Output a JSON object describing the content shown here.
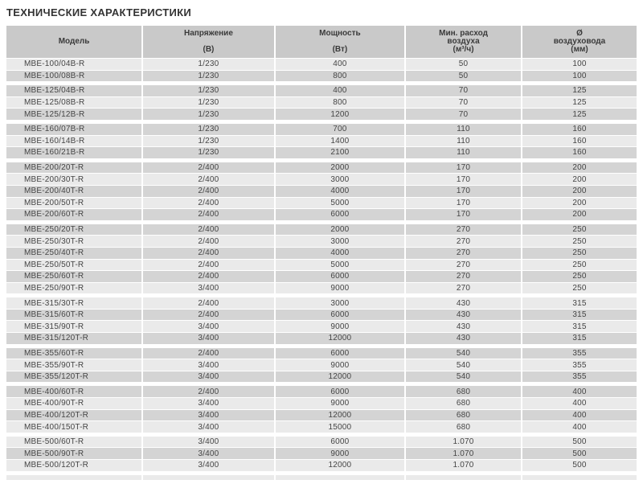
{
  "page_title": "ТЕХНИЧЕСКИЕ ХАРАКТЕРИСТИКИ",
  "colors": {
    "header_bg": "#c9c9c9",
    "row_light": "#eaeaea",
    "row_dark": "#d4d4d4",
    "separator": "#ffffff",
    "title_text": "#333333",
    "cell_text": "#454545"
  },
  "table": {
    "columns": [
      {
        "id": "model",
        "lines": [
          "Модель"
        ]
      },
      {
        "id": "voltage",
        "lines": [
          "Напряжение",
          "(В)"
        ]
      },
      {
        "id": "power",
        "lines": [
          "Мощность",
          "(Вт)"
        ]
      },
      {
        "id": "airflow",
        "lines": [
          "Мин. расход",
          "воздуха",
          "(м³/ч)"
        ]
      },
      {
        "id": "diameter",
        "lines": [
          "Ø",
          "воздуховода",
          "(мм)"
        ]
      }
    ],
    "groups": [
      {
        "rows": [
          [
            "MBE-100/04B-R",
            "1/230",
            "400",
            "50",
            "100"
          ],
          [
            "MBE-100/08B-R",
            "1/230",
            "800",
            "50",
            "100"
          ]
        ]
      },
      {
        "rows": [
          [
            "MBE-125/04B-R",
            "1/230",
            "400",
            "70",
            "125"
          ],
          [
            "MBE-125/08B-R",
            "1/230",
            "800",
            "70",
            "125"
          ],
          [
            "MBE-125/12B-R",
            "1/230",
            "1200",
            "70",
            "125"
          ]
        ]
      },
      {
        "rows": [
          [
            "MBE-160/07B-R",
            "1/230",
            "700",
            "110",
            "160"
          ],
          [
            "MBE-160/14B-R",
            "1/230",
            "1400",
            "110",
            "160"
          ],
          [
            "MBE-160/21B-R",
            "1/230",
            "2100",
            "110",
            "160"
          ]
        ]
      },
      {
        "rows": [
          [
            "MBE-200/20T-R",
            "2/400",
            "2000",
            "170",
            "200"
          ],
          [
            "MBE-200/30T-R",
            "2/400",
            "3000",
            "170",
            "200"
          ],
          [
            "MBE-200/40T-R",
            "2/400",
            "4000",
            "170",
            "200"
          ],
          [
            "MBE-200/50T-R",
            "2/400",
            "5000",
            "170",
            "200"
          ],
          [
            "MBE-200/60T-R",
            "2/400",
            "6000",
            "170",
            "200"
          ]
        ]
      },
      {
        "rows": [
          [
            "MBE-250/20T-R",
            "2/400",
            "2000",
            "270",
            "250"
          ],
          [
            "MBE-250/30T-R",
            "2/400",
            "3000",
            "270",
            "250"
          ],
          [
            "MBE-250/40T-R",
            "2/400",
            "4000",
            "270",
            "250"
          ],
          [
            "MBE-250/50T-R",
            "2/400",
            "5000",
            "270",
            "250"
          ],
          [
            "MBE-250/60T-R",
            "2/400",
            "6000",
            "270",
            "250"
          ],
          [
            "MBE-250/90T-R",
            "3/400",
            "9000",
            "270",
            "250"
          ]
        ]
      },
      {
        "rows": [
          [
            "MBE-315/30T-R",
            "2/400",
            "3000",
            "430",
            "315"
          ],
          [
            "MBE-315/60T-R",
            "2/400",
            "6000",
            "430",
            "315"
          ],
          [
            "MBE-315/90T-R",
            "3/400",
            "9000",
            "430",
            "315"
          ],
          [
            "MBE-315/120T-R",
            "3/400",
            "12000",
            "430",
            "315"
          ]
        ]
      },
      {
        "rows": [
          [
            "MBE-355/60T-R",
            "2/400",
            "6000",
            "540",
            "355"
          ],
          [
            "MBE-355/90T-R",
            "3/400",
            "9000",
            "540",
            "355"
          ],
          [
            "MBE-355/120T-R",
            "3/400",
            "12000",
            "540",
            "355"
          ]
        ]
      },
      {
        "rows": [
          [
            "MBE-400/60T-R",
            "2/400",
            "6000",
            "680",
            "400"
          ],
          [
            "MBE-400/90T-R",
            "3/400",
            "9000",
            "680",
            "400"
          ],
          [
            "MBE-400/120T-R",
            "3/400",
            "12000",
            "680",
            "400"
          ],
          [
            "MBE-400/150T-R",
            "3/400",
            "15000",
            "680",
            "400"
          ]
        ]
      },
      {
        "rows": [
          [
            "MBE-500/60T-R",
            "3/400",
            "6000",
            "1.070",
            "500"
          ],
          [
            "MBE-500/90T-R",
            "3/400",
            "9000",
            "1.070",
            "500"
          ],
          [
            "MBE-500/120T-R",
            "3/400",
            "12000",
            "1.070",
            "500"
          ]
        ]
      }
    ]
  }
}
